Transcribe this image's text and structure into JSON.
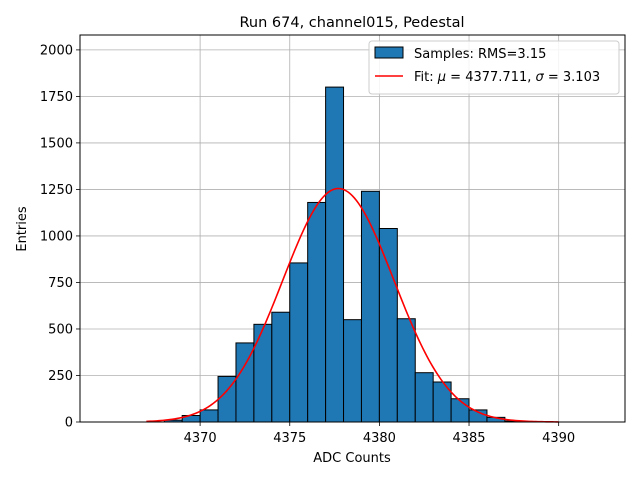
{
  "chart_data": {
    "type": "bar",
    "title": "Run 674, channel015, Pedestal",
    "xlabel": "ADC Counts",
    "ylabel": "Entries",
    "xlim": [
      4363.3,
      4393.7
    ],
    "ylim": [
      0,
      2080
    ],
    "xticks": [
      4370,
      4375,
      4380,
      4385,
      4390
    ],
    "yticks": [
      0,
      250,
      500,
      750,
      1000,
      1250,
      1500,
      1750,
      2000
    ],
    "grid": true,
    "legend_position": "top-right",
    "bin_width": 1,
    "histogram": {
      "name": "Samples: RMS=3.15",
      "color": "#1f77b4",
      "bins": [
        {
          "x": 4368,
          "count": 10
        },
        {
          "x": 4369,
          "count": 35
        },
        {
          "x": 4370,
          "count": 65
        },
        {
          "x": 4371,
          "count": 245
        },
        {
          "x": 4372,
          "count": 425
        },
        {
          "x": 4373,
          "count": 525
        },
        {
          "x": 4374,
          "count": 590
        },
        {
          "x": 4375,
          "count": 855
        },
        {
          "x": 4376,
          "count": 1180
        },
        {
          "x": 4377,
          "count": 1800
        },
        {
          "x": 4378,
          "count": 550
        },
        {
          "x": 4379,
          "count": 1240
        },
        {
          "x": 4380,
          "count": 1040
        },
        {
          "x": 4381,
          "count": 555
        },
        {
          "x": 4382,
          "count": 265
        },
        {
          "x": 4383,
          "count": 215
        },
        {
          "x": 4384,
          "count": 125
        },
        {
          "x": 4385,
          "count": 65
        },
        {
          "x": 4386,
          "count": 25
        },
        {
          "x": 4387,
          "count": 5
        }
      ]
    },
    "fit": {
      "name_prefix": "Fit: ",
      "mu_symbol": "μ",
      "sigma_symbol": "σ",
      "name_mid": " = 4377.711, ",
      "name_end": " = 3.103",
      "color": "#ff0000",
      "mu": 4377.711,
      "sigma": 3.103,
      "amplitude": 1255,
      "x_range": [
        4367,
        4390
      ]
    }
  }
}
